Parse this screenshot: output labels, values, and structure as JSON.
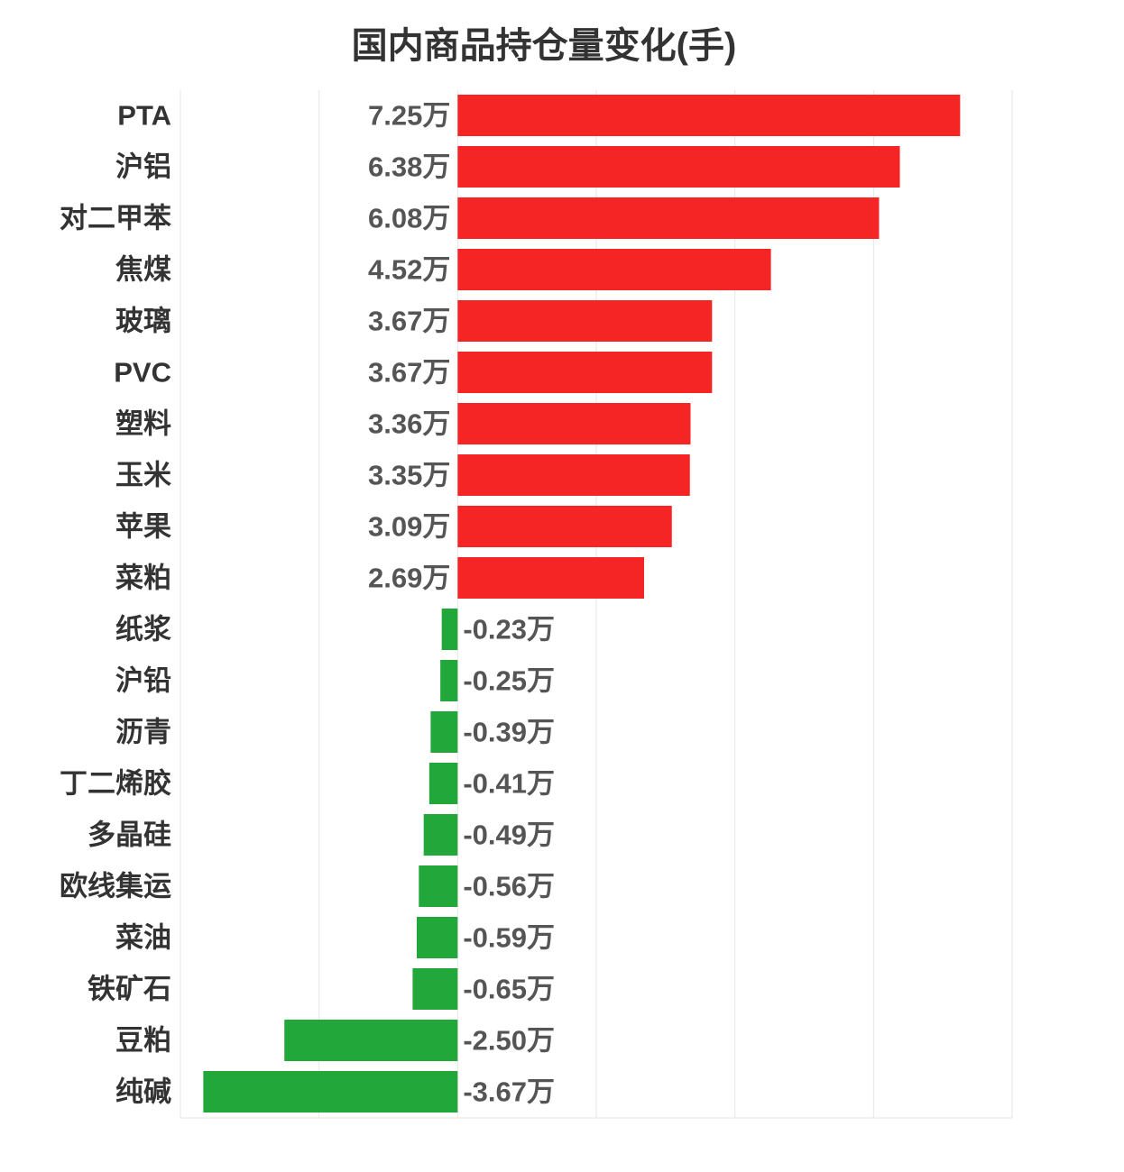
{
  "chart_data": {
    "type": "bar",
    "orientation": "horizontal",
    "title": "国内商品持仓量变化(手)",
    "unit_suffix": "万",
    "categories": [
      "PTA",
      "沪铝",
      "对二甲苯",
      "焦煤",
      "玻璃",
      "PVC",
      "塑料",
      "玉米",
      "苹果",
      "菜粕",
      "纸浆",
      "沪铅",
      "沥青",
      "丁二烯胶",
      "多晶硅",
      "欧线集运",
      "菜油",
      "铁矿石",
      "豆粕",
      "纯碱"
    ],
    "values": [
      7.25,
      6.38,
      6.08,
      4.52,
      3.67,
      3.67,
      3.36,
      3.35,
      3.09,
      2.69,
      -0.23,
      -0.25,
      -0.39,
      -0.41,
      -0.49,
      -0.56,
      -0.59,
      -0.65,
      -2.5,
      -3.67
    ],
    "labels": [
      "7.25万",
      "6.38万",
      "6.08万",
      "4.52万",
      "3.67万",
      "3.67万",
      "3.36万",
      "3.35万",
      "3.09万",
      "2.69万",
      "-0.23万",
      "-0.25万",
      "-0.39万",
      "-0.41万",
      "-0.49万",
      "-0.56万",
      "-0.59万",
      "-0.65万",
      "-2.50万",
      "-3.67万"
    ],
    "xlim": [
      -4,
      8
    ],
    "grid": true,
    "colors": {
      "positive": "#f52525",
      "negative": "#22a83a",
      "grid": "#e6e6e6"
    }
  }
}
